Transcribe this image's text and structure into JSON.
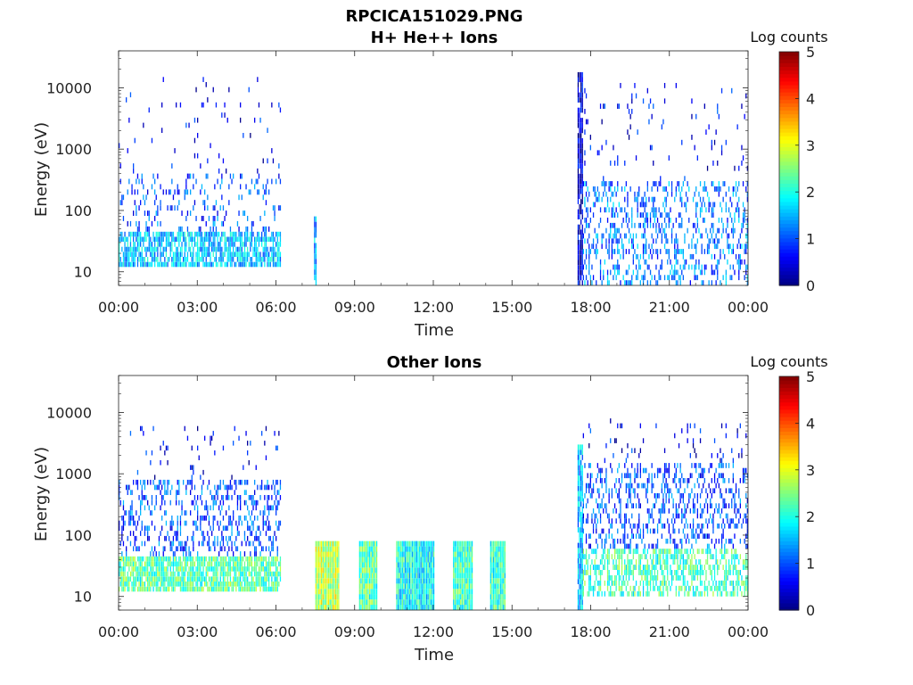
{
  "figure": {
    "title": "RPCICA151029.PNG"
  },
  "colors": {
    "axis": "#222222",
    "background": "#ffffff",
    "colormap": "jet"
  },
  "chart_data": [
    {
      "type": "heatmap",
      "title": "H+ He++ Ions",
      "xlabel": "Time",
      "ylabel": "Energy (eV)",
      "y_scale": "log",
      "ylim": [
        6,
        40000
      ],
      "xlim": [
        "00:00",
        "24:00"
      ],
      "x_ticks": [
        "00:00",
        "03:00",
        "06:00",
        "09:00",
        "12:00",
        "15:00",
        "18:00",
        "21:00",
        "00:00"
      ],
      "y_ticks": [
        "10",
        "100",
        "1000",
        "10000"
      ],
      "y_tick_values": [
        10,
        100,
        1000,
        10000
      ],
      "colorbar": {
        "label": "Log counts",
        "range": [
          0,
          5
        ],
        "ticks": [
          "0",
          "1",
          "2",
          "3",
          "4",
          "5"
        ]
      },
      "regions": [
        {
          "time_start": "00:00",
          "time_end": "06:10",
          "energy_low": 12,
          "energy_high": 45,
          "level": 1.6,
          "density": 0.75
        },
        {
          "time_start": "00:00",
          "time_end": "06:10",
          "energy_low": 45,
          "energy_high": 400,
          "level": 1.0,
          "density": 0.15
        },
        {
          "time_start": "00:00",
          "time_end": "06:10",
          "energy_low": 400,
          "energy_high": 15000,
          "level": 0.6,
          "density": 0.03
        },
        {
          "time_start": "07:27",
          "time_end": "07:33",
          "energy_low": 6,
          "energy_high": 80,
          "level": 1.4,
          "density": 0.9
        },
        {
          "time_start": "17:30",
          "time_end": "17:42",
          "energy_low": 6,
          "energy_high": 18000,
          "level": 0.4,
          "density": 0.9
        },
        {
          "time_start": "17:42",
          "time_end": "24:00",
          "energy_low": 6,
          "energy_high": 300,
          "level": 1.2,
          "density": 0.3
        },
        {
          "time_start": "17:42",
          "time_end": "24:00",
          "energy_low": 300,
          "energy_high": 12000,
          "level": 0.6,
          "density": 0.03
        }
      ]
    },
    {
      "type": "heatmap",
      "title": "Other Ions",
      "xlabel": "Time",
      "ylabel": "Energy (eV)",
      "y_scale": "log",
      "ylim": [
        6,
        40000
      ],
      "xlim": [
        "00:00",
        "24:00"
      ],
      "x_ticks": [
        "00:00",
        "03:00",
        "06:00",
        "09:00",
        "12:00",
        "15:00",
        "18:00",
        "21:00",
        "00:00"
      ],
      "y_ticks": [
        "10",
        "100",
        "1000",
        "10000"
      ],
      "y_tick_values": [
        10,
        100,
        1000,
        10000
      ],
      "colorbar": {
        "label": "Log counts",
        "range": [
          0,
          5
        ],
        "ticks": [
          "0",
          "1",
          "2",
          "3",
          "4",
          "5"
        ]
      },
      "regions": [
        {
          "time_start": "00:00",
          "time_end": "06:10",
          "energy_low": 12,
          "energy_high": 45,
          "level": 2.3,
          "density": 0.85
        },
        {
          "time_start": "00:00",
          "time_end": "06:10",
          "energy_low": 45,
          "energy_high": 800,
          "level": 1.0,
          "density": 0.3
        },
        {
          "time_start": "00:00",
          "time_end": "06:10",
          "energy_low": 800,
          "energy_high": 6000,
          "level": 0.6,
          "density": 0.05
        },
        {
          "time_start": "07:30",
          "time_end": "08:25",
          "energy_low": 6,
          "energy_high": 80,
          "level": 2.8,
          "density": 1.0
        },
        {
          "time_start": "09:10",
          "time_end": "09:50",
          "energy_low": 6,
          "energy_high": 80,
          "level": 2.3,
          "density": 1.0
        },
        {
          "time_start": "10:35",
          "time_end": "12:00",
          "energy_low": 6,
          "energy_high": 80,
          "level": 1.9,
          "density": 1.0
        },
        {
          "time_start": "12:45",
          "time_end": "13:30",
          "energy_low": 6,
          "energy_high": 80,
          "level": 2.2,
          "density": 1.0
        },
        {
          "time_start": "14:10",
          "time_end": "14:45",
          "energy_low": 6,
          "energy_high": 80,
          "level": 2.1,
          "density": 1.0
        },
        {
          "time_start": "17:30",
          "time_end": "17:42",
          "energy_low": 6,
          "energy_high": 3000,
          "level": 1.5,
          "density": 0.9
        },
        {
          "time_start": "17:42",
          "time_end": "24:00",
          "energy_low": 10,
          "energy_high": 60,
          "level": 2.2,
          "density": 0.55
        },
        {
          "time_start": "17:42",
          "time_end": "24:00",
          "energy_low": 60,
          "energy_high": 1500,
          "level": 1.0,
          "density": 0.3
        },
        {
          "time_start": "17:42",
          "time_end": "24:00",
          "energy_low": 1500,
          "energy_high": 8000,
          "level": 0.6,
          "density": 0.05
        }
      ]
    }
  ]
}
